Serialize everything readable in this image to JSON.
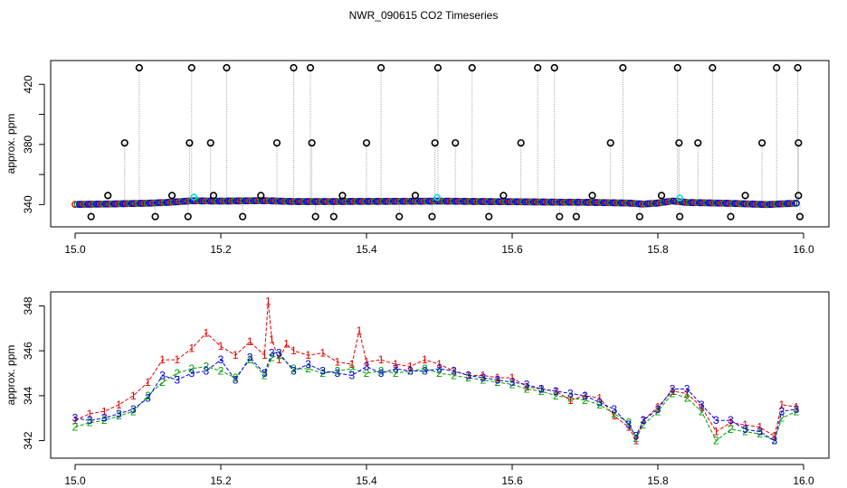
{
  "title": "NWR_090615  CO2 Timeseries",
  "colors": {
    "series1": "#e00000",
    "series2": "#00a000",
    "series3": "#0000ee",
    "outlier": "#000000",
    "cyan": "#00dddd",
    "connector": "#aaaaaa"
  },
  "chart_data": [
    {
      "type": "scatter",
      "name": "top-panel",
      "ylabel": "approx. ppm",
      "xlim": [
        15.0,
        16.0
      ],
      "ylim": [
        330,
        431
      ],
      "xticks": [
        15.0,
        15.2,
        15.4,
        15.6,
        15.8,
        16.0
      ],
      "xtick_labels": [
        "15.0",
        "15.2",
        "15.4",
        "15.6",
        "15.8",
        "16.0"
      ],
      "yticks": [
        340,
        360,
        380,
        400,
        420
      ],
      "ytick_labels": [
        "340",
        "",
        "380",
        "",
        "420"
      ],
      "baseline": [
        [
          15.0,
          340.1
        ],
        [
          15.05,
          340.4
        ],
        [
          15.1,
          340.9
        ],
        [
          15.13,
          341.5
        ],
        [
          15.16,
          342.5
        ],
        [
          15.2,
          342.3
        ],
        [
          15.26,
          342.6
        ],
        [
          15.3,
          342.0
        ],
        [
          15.33,
          342.0
        ],
        [
          15.4,
          342.1
        ],
        [
          15.47,
          342.2
        ],
        [
          15.5,
          342.3
        ],
        [
          15.56,
          342.0
        ],
        [
          15.6,
          341.9
        ],
        [
          15.66,
          341.6
        ],
        [
          15.7,
          341.5
        ],
        [
          15.76,
          341.0
        ],
        [
          15.78,
          340.3
        ],
        [
          15.8,
          341.0
        ],
        [
          15.82,
          342.4
        ],
        [
          15.84,
          341.4
        ],
        [
          15.9,
          340.8
        ],
        [
          15.95,
          340.0
        ],
        [
          15.99,
          340.9
        ]
      ],
      "outliers_high": [
        15.088,
        15.16,
        15.208,
        15.3,
        15.323,
        15.42,
        15.498,
        15.545,
        15.635,
        15.658,
        15.752,
        15.827,
        15.875,
        15.963,
        15.992
      ],
      "outliers_mid": [
        15.068,
        15.157,
        15.186,
        15.277,
        15.325,
        15.4,
        15.494,
        15.522,
        15.612,
        15.735,
        15.829,
        15.855,
        15.943,
        15.993
      ],
      "outliers_low_mid": [
        15.045,
        15.133,
        15.19,
        15.255,
        15.367,
        15.467,
        15.588,
        15.71,
        15.805,
        15.92,
        15.993
      ],
      "outliers_bottom": [
        15.022,
        15.11,
        15.155,
        15.23,
        15.33,
        15.355,
        15.445,
        15.49,
        15.568,
        15.665,
        15.688,
        15.775,
        15.83,
        15.9,
        15.995
      ],
      "outlier_values": {
        "high": 431,
        "mid": 381,
        "low_mid": 346,
        "bottom": 332
      }
    },
    {
      "type": "scatter",
      "name": "bottom-panel",
      "ylabel": "approx. ppm",
      "xlim": [
        15.0,
        16.0
      ],
      "ylim": [
        341.5,
        348.3
      ],
      "xticks": [
        15.0,
        15.2,
        15.4,
        15.6,
        15.8,
        16.0
      ],
      "xtick_labels": [
        "15.0",
        "15.2",
        "15.4",
        "15.6",
        "15.8",
        "16.0"
      ],
      "yticks": [
        342,
        344,
        346,
        348
      ],
      "ytick_labels": [
        "342",
        "344",
        "346",
        "348"
      ],
      "series": [
        {
          "name": "1",
          "values": [
            [
              15.0,
              342.9
            ],
            [
              15.02,
              343.2
            ],
            [
              15.04,
              343.3
            ],
            [
              15.06,
              343.6
            ],
            [
              15.08,
              344.0
            ],
            [
              15.1,
              344.6
            ],
            [
              15.12,
              345.6
            ],
            [
              15.14,
              345.6
            ],
            [
              15.16,
              346.1
            ],
            [
              15.18,
              346.8
            ],
            [
              15.2,
              346.2
            ],
            [
              15.22,
              345.8
            ],
            [
              15.24,
              346.4
            ],
            [
              15.26,
              345.8
            ],
            [
              15.265,
              348.2
            ],
            [
              15.27,
              346.5
            ],
            [
              15.28,
              345.6
            ],
            [
              15.29,
              346.3
            ],
            [
              15.3,
              346.0
            ],
            [
              15.32,
              345.8
            ],
            [
              15.34,
              345.9
            ],
            [
              15.36,
              345.5
            ],
            [
              15.38,
              345.4
            ],
            [
              15.39,
              346.9
            ],
            [
              15.4,
              345.5
            ],
            [
              15.42,
              345.6
            ],
            [
              15.44,
              345.4
            ],
            [
              15.46,
              345.3
            ],
            [
              15.48,
              345.6
            ],
            [
              15.5,
              345.4
            ],
            [
              15.52,
              345.1
            ],
            [
              15.54,
              344.9
            ],
            [
              15.56,
              344.9
            ],
            [
              15.58,
              344.8
            ],
            [
              15.6,
              344.8
            ],
            [
              15.62,
              344.4
            ],
            [
              15.64,
              344.3
            ],
            [
              15.66,
              344.2
            ],
            [
              15.68,
              343.8
            ],
            [
              15.7,
              344.0
            ],
            [
              15.72,
              343.9
            ],
            [
              15.74,
              343.1
            ],
            [
              15.76,
              342.6
            ],
            [
              15.77,
              342.0
            ],
            [
              15.78,
              342.9
            ],
            [
              15.8,
              343.5
            ],
            [
              15.82,
              344.2
            ],
            [
              15.84,
              344.1
            ],
            [
              15.86,
              343.5
            ],
            [
              15.88,
              342.4
            ],
            [
              15.9,
              342.8
            ],
            [
              15.92,
              342.7
            ],
            [
              15.94,
              342.6
            ],
            [
              15.96,
              342.2
            ],
            [
              15.97,
              343.6
            ],
            [
              15.99,
              343.5
            ]
          ]
        },
        {
          "name": "2",
          "values": [
            [
              15.0,
              342.6
            ],
            [
              15.02,
              342.8
            ],
            [
              15.04,
              342.9
            ],
            [
              15.06,
              343.1
            ],
            [
              15.08,
              343.3
            ],
            [
              15.1,
              344.0
            ],
            [
              15.12,
              344.6
            ],
            [
              15.14,
              345.0
            ],
            [
              15.16,
              345.2
            ],
            [
              15.18,
              345.3
            ],
            [
              15.2,
              345.1
            ],
            [
              15.22,
              344.8
            ],
            [
              15.24,
              345.6
            ],
            [
              15.26,
              344.9
            ],
            [
              15.27,
              345.7
            ],
            [
              15.28,
              345.8
            ],
            [
              15.3,
              345.2
            ],
            [
              15.32,
              345.2
            ],
            [
              15.34,
              345.0
            ],
            [
              15.36,
              345.1
            ],
            [
              15.38,
              345.2
            ],
            [
              15.4,
              345.0
            ],
            [
              15.42,
              345.1
            ],
            [
              15.44,
              345.0
            ],
            [
              15.46,
              345.1
            ],
            [
              15.48,
              345.2
            ],
            [
              15.5,
              345.0
            ],
            [
              15.52,
              344.9
            ],
            [
              15.54,
              344.8
            ],
            [
              15.56,
              344.7
            ],
            [
              15.58,
              344.6
            ],
            [
              15.6,
              344.5
            ],
            [
              15.62,
              344.3
            ],
            [
              15.64,
              344.2
            ],
            [
              15.66,
              344.0
            ],
            [
              15.68,
              343.9
            ],
            [
              15.7,
              343.8
            ],
            [
              15.72,
              343.6
            ],
            [
              15.74,
              343.2
            ],
            [
              15.76,
              342.8
            ],
            [
              15.77,
              342.1
            ],
            [
              15.78,
              342.7
            ],
            [
              15.8,
              343.3
            ],
            [
              15.82,
              344.1
            ],
            [
              15.84,
              343.9
            ],
            [
              15.86,
              343.3
            ],
            [
              15.88,
              342.0
            ],
            [
              15.9,
              342.5
            ],
            [
              15.92,
              342.4
            ],
            [
              15.94,
              342.3
            ],
            [
              15.96,
              342.0
            ],
            [
              15.97,
              343.0
            ],
            [
              15.99,
              343.3
            ]
          ]
        },
        {
          "name": "3",
          "values": [
            [
              15.0,
              343.0
            ],
            [
              15.02,
              342.9
            ],
            [
              15.04,
              343.0
            ],
            [
              15.06,
              343.2
            ],
            [
              15.08,
              343.4
            ],
            [
              15.1,
              343.9
            ],
            [
              15.12,
              344.9
            ],
            [
              15.14,
              344.7
            ],
            [
              15.16,
              345.0
            ],
            [
              15.18,
              345.1
            ],
            [
              15.2,
              345.6
            ],
            [
              15.22,
              344.7
            ],
            [
              15.24,
              345.7
            ],
            [
              15.26,
              345.0
            ],
            [
              15.27,
              345.9
            ],
            [
              15.28,
              345.9
            ],
            [
              15.3,
              345.1
            ],
            [
              15.32,
              345.4
            ],
            [
              15.34,
              345.1
            ],
            [
              15.36,
              345.0
            ],
            [
              15.38,
              344.9
            ],
            [
              15.4,
              345.3
            ],
            [
              15.42,
              345.0
            ],
            [
              15.44,
              345.2
            ],
            [
              15.46,
              345.1
            ],
            [
              15.48,
              345.1
            ],
            [
              15.5,
              345.2
            ],
            [
              15.52,
              345.1
            ],
            [
              15.54,
              344.9
            ],
            [
              15.56,
              344.8
            ],
            [
              15.58,
              344.7
            ],
            [
              15.6,
              344.6
            ],
            [
              15.62,
              344.5
            ],
            [
              15.64,
              344.3
            ],
            [
              15.66,
              344.2
            ],
            [
              15.68,
              344.1
            ],
            [
              15.7,
              344.0
            ],
            [
              15.72,
              343.7
            ],
            [
              15.74,
              343.4
            ],
            [
              15.76,
              342.7
            ],
            [
              15.77,
              342.2
            ],
            [
              15.78,
              342.9
            ],
            [
              15.8,
              343.4
            ],
            [
              15.82,
              344.3
            ],
            [
              15.84,
              344.3
            ],
            [
              15.86,
              343.6
            ],
            [
              15.88,
              342.9
            ],
            [
              15.9,
              342.9
            ],
            [
              15.92,
              342.5
            ],
            [
              15.94,
              342.4
            ],
            [
              15.96,
              342.0
            ],
            [
              15.97,
              343.3
            ],
            [
              15.99,
              343.4
            ]
          ]
        }
      ]
    }
  ]
}
